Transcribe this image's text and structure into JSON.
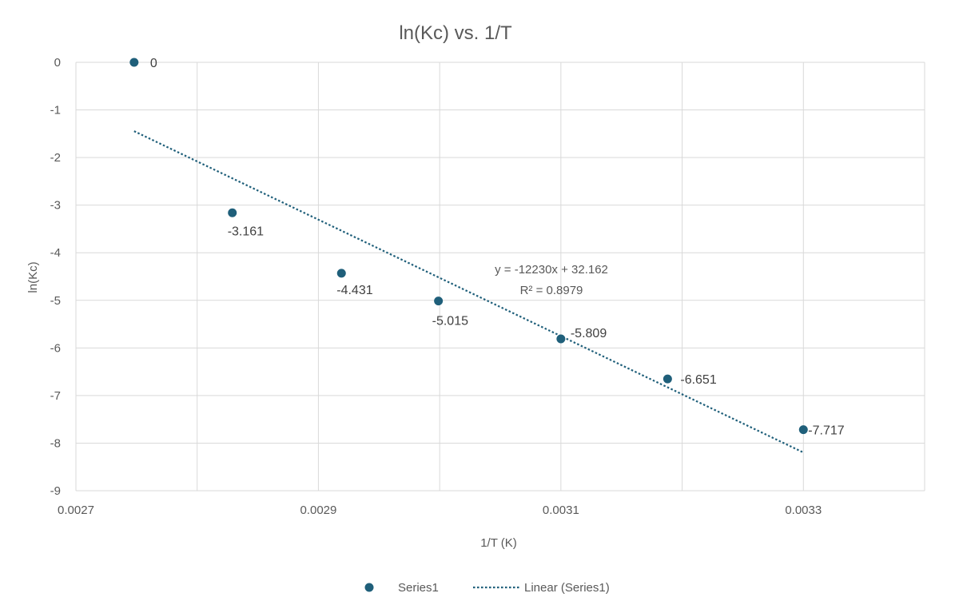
{
  "chart_data": {
    "type": "scatter",
    "title": "ln(Kc) vs. 1/T",
    "xlabel": "1/T (K)",
    "ylabel": "ln(Kc)",
    "xlim": [
      0.0027,
      0.0034
    ],
    "ylim": [
      -9,
      0
    ],
    "x_ticks": [
      0.0027,
      0.0029,
      0.0031,
      0.0033
    ],
    "x_tick_labels": [
      "0.0027",
      "0.0029",
      "0.0031",
      "0.0033"
    ],
    "y_ticks": [
      0,
      -1,
      -2,
      -3,
      -4,
      -5,
      -6,
      -7,
      -8,
      -9
    ],
    "y_tick_labels": [
      "0",
      "-1",
      "-2",
      "-3",
      "-4",
      "-5",
      "-6",
      "-7",
      "-8",
      "-9"
    ],
    "grid": true,
    "legend_position": "bottom",
    "series": [
      {
        "name": "Series1",
        "color": "#1f5f7a",
        "points": [
          {
            "x": 0.002748,
            "y": 0,
            "label": "0"
          },
          {
            "x": 0.002829,
            "y": -3.161,
            "label": "-3.161"
          },
          {
            "x": 0.002919,
            "y": -4.431,
            "label": "-4.431"
          },
          {
            "x": 0.002999,
            "y": -5.015,
            "label": "-5.015"
          },
          {
            "x": 0.0031,
            "y": -5.809,
            "label": "-5.809"
          },
          {
            "x": 0.003188,
            "y": -6.651,
            "label": "-6.651"
          },
          {
            "x": 0.0033,
            "y": -7.717,
            "label": "-7.717"
          }
        ]
      }
    ],
    "trendline": {
      "name": "Linear (Series1)",
      "type": "linear",
      "slope": -12230,
      "intercept": 32.162,
      "x_range": [
        0.002748,
        0.0033
      ],
      "equation": "y = -12230x + 32.162",
      "r_squared": "R² = 0.8979",
      "color": "#1f5f7a"
    }
  }
}
